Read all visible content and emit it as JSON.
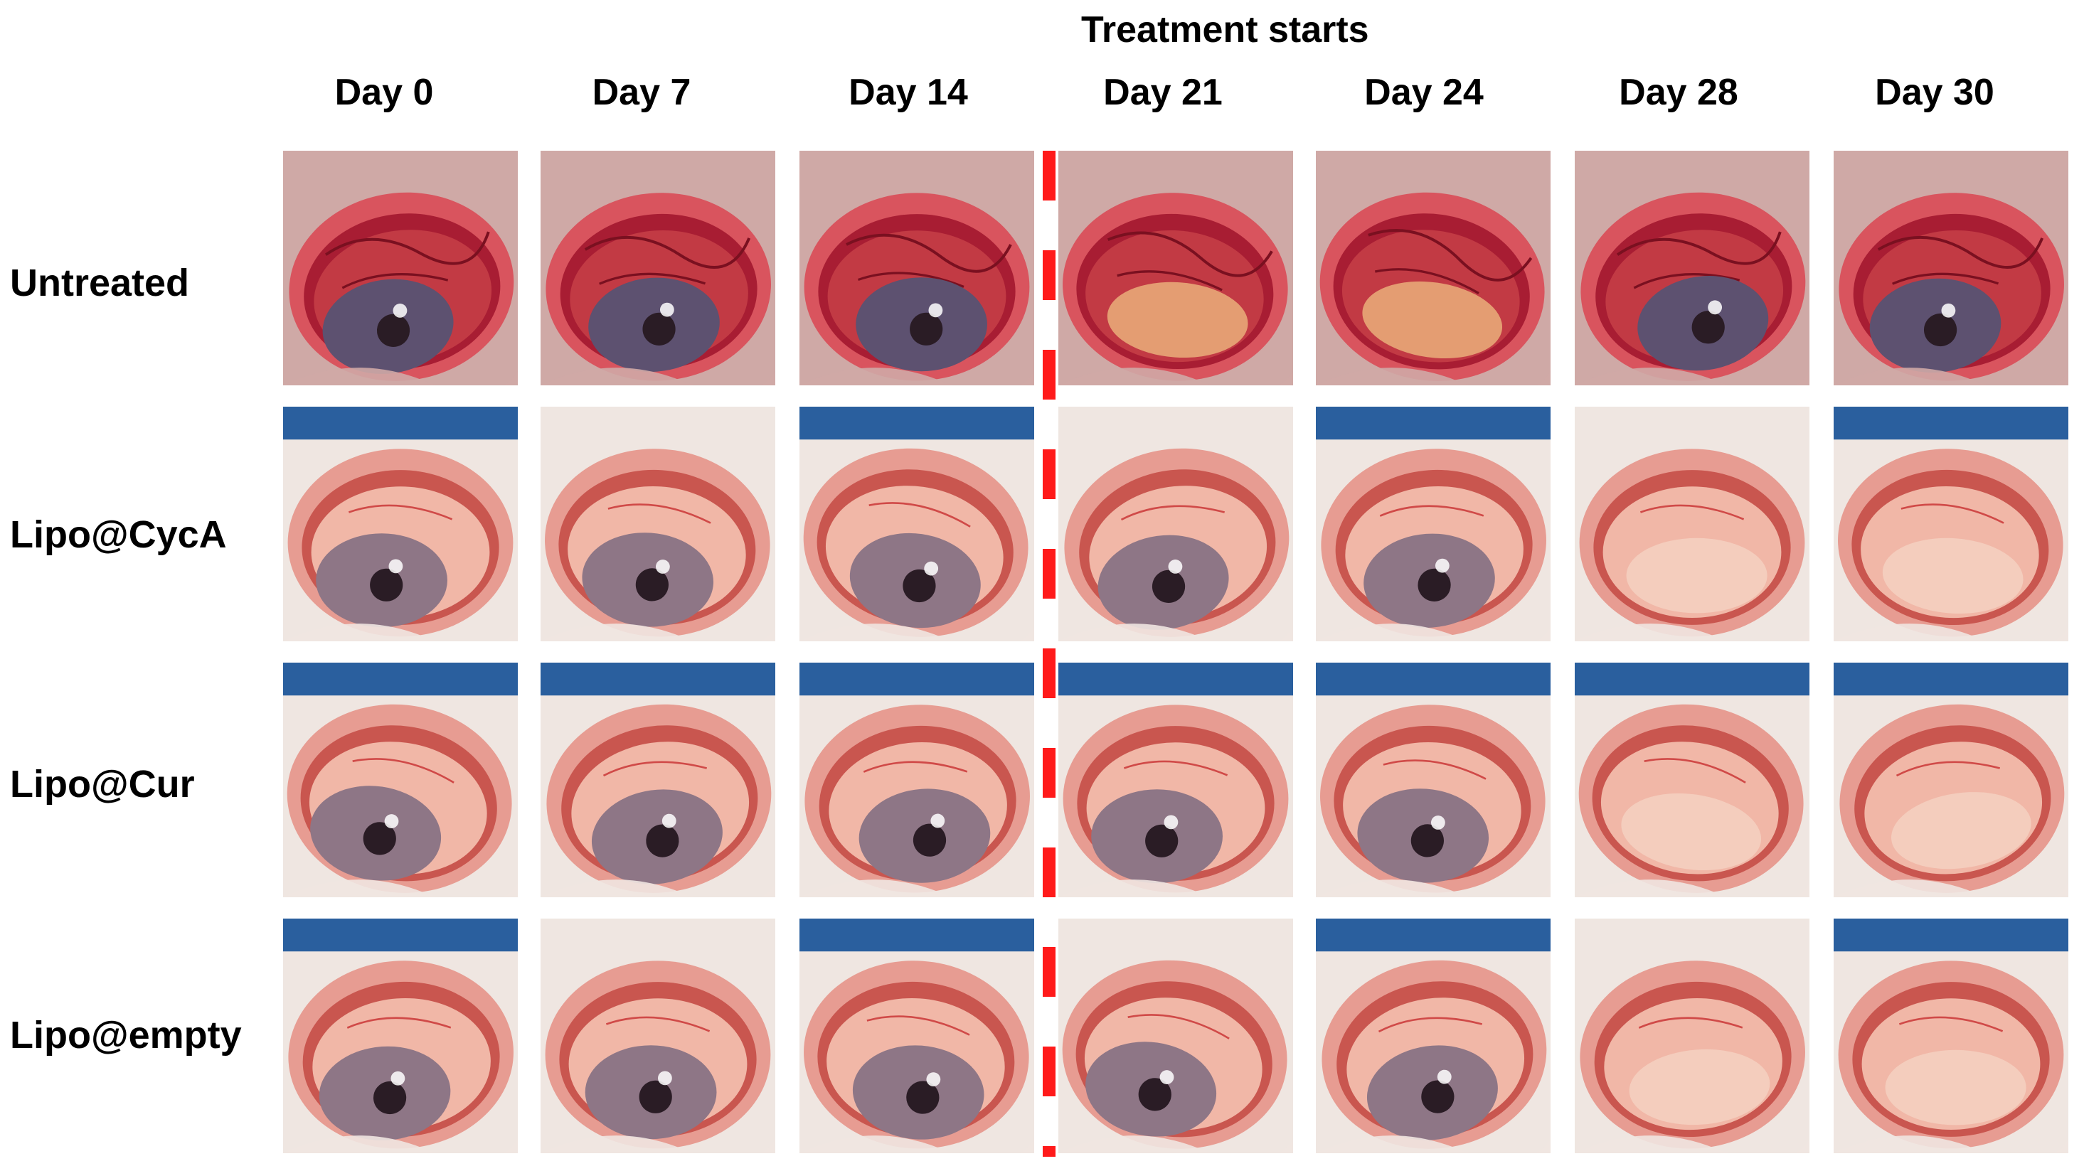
{
  "annotation": {
    "treatment_starts": "Treatment starts"
  },
  "columns": [
    "Day 0",
    "Day 7",
    "Day 14",
    "Day 21",
    "Day 24",
    "Day 28",
    "Day 30"
  ],
  "rows": [
    "Untreated",
    "Lipo@CycA",
    "Lipo@Cur",
    "Lipo@empty"
  ],
  "colors": {
    "divider": "#ff1a1a",
    "untreated_tissue": "#b8263c",
    "treated_tissue": "#e9968a",
    "fur": "#efe6e1",
    "drape": "#2a5f9e"
  }
}
